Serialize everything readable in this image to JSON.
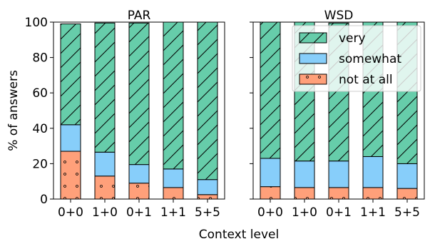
{
  "figure": {
    "xlabel": "Context level",
    "ylabel": "% of answers"
  },
  "colors": {
    "very": "#66cdaa",
    "somewhat": "#87cefa",
    "not at all": "#ffa07a"
  },
  "chart_data": [
    {
      "type": "bar",
      "stacked": true,
      "title": "PAR",
      "categories": [
        "0+0",
        "1+0",
        "0+1",
        "1+1",
        "5+5"
      ],
      "ylim": [
        0,
        100
      ],
      "yticks": [
        0,
        20,
        40,
        60,
        80,
        100
      ],
      "series": [
        {
          "name": "not at all",
          "values": [
            27,
            13,
            9,
            6.5,
            2.5
          ],
          "hatch": "dots"
        },
        {
          "name": "somewhat",
          "values": [
            15,
            13.5,
            10.5,
            10.5,
            8.5
          ],
          "hatch": "none"
        },
        {
          "name": "very",
          "values": [
            57,
            73,
            80,
            83,
            89
          ],
          "hatch": "diagonal"
        }
      ]
    },
    {
      "type": "bar",
      "stacked": true,
      "title": "WSD",
      "categories": [
        "0+0",
        "1+0",
        "0+1",
        "1+1",
        "5+5"
      ],
      "ylim": [
        0,
        100
      ],
      "yticks": [
        0,
        20,
        40,
        60,
        80,
        100
      ],
      "series": [
        {
          "name": "not at all",
          "values": [
            7,
            6.5,
            6.5,
            6.5,
            6
          ],
          "hatch": "dots"
        },
        {
          "name": "somewhat",
          "values": [
            16,
            15,
            15,
            17.5,
            14
          ],
          "hatch": "none"
        },
        {
          "name": "very",
          "values": [
            77,
            78.5,
            78,
            76,
            80
          ],
          "hatch": "diagonal"
        }
      ],
      "legend": {
        "position": "top-right",
        "entries": [
          "very",
          "somewhat",
          "not at all"
        ]
      }
    }
  ]
}
